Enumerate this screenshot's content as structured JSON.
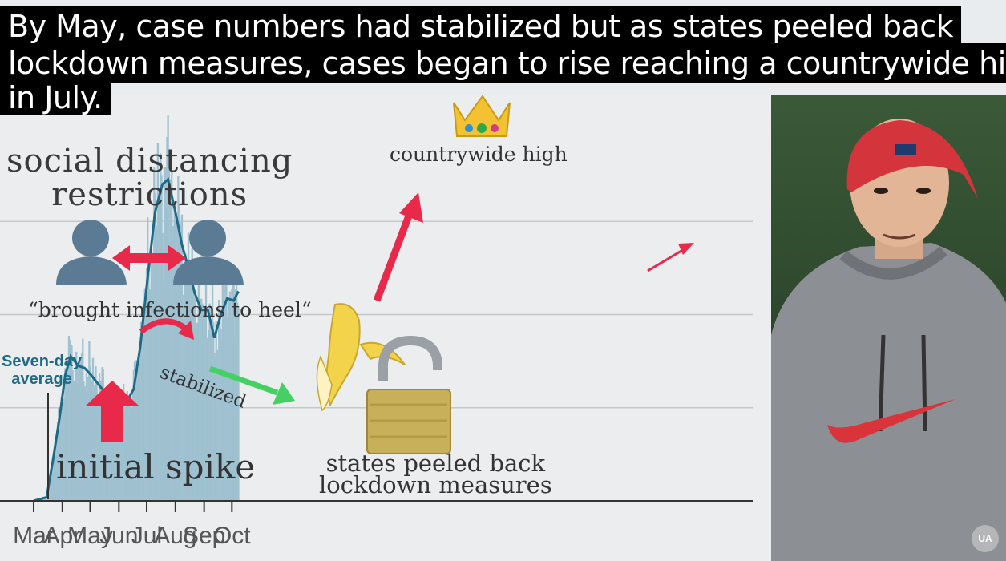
{
  "caption": {
    "lines": [
      "By May, case numbers had stabilized but as states peeled back",
      "lockdown measures, cases began to rise reaching a countrywide high",
      "in July."
    ]
  },
  "annotations": {
    "social_line1": "social distancing",
    "social_line2": "restrictions",
    "quote": "“brought infections to heel“",
    "avg_line1": "Seven-day",
    "avg_line2": "average",
    "spike": "initial spike",
    "stabilized": "stabilized",
    "peel_line1": "states peeled back",
    "peel_line2": "lockdown measures",
    "high": "countrywide high"
  },
  "icons": [
    "two-people-icon",
    "red-double-arrow-icon",
    "red-up-arrow-icon",
    "curved-red-arrow-icon",
    "green-arrow-icon",
    "banana-icon",
    "padlock-icon",
    "crown-icon",
    "red-diagonal-arrow-icon"
  ],
  "colors": {
    "bars": "#9fc1d0",
    "average_line": "#1e6a86",
    "arrow_red": "#e8294a",
    "arrow_green": "#45d063",
    "grid": "#c5c8ca"
  },
  "chart_data": {
    "type": "bar",
    "ylim": [
      0,
      80000
    ],
    "grid": true,
    "x_tick_labels": [
      "Mar",
      "Apr",
      "May",
      "Jun",
      "Jul",
      "Aug",
      "Sep",
      "Oct"
    ],
    "series": [
      {
        "name": "Seven-day average",
        "kind": "line",
        "points": [
          [
            "Mar 1",
            0
          ],
          [
            "Mar 15",
            800
          ],
          [
            "Mar 22",
            9000
          ],
          [
            "Mar 29",
            18000
          ],
          [
            "Apr 4",
            27000
          ],
          [
            "Apr 10",
            31000
          ],
          [
            "Apr 18",
            29000
          ],
          [
            "Apr 25",
            28500
          ],
          [
            "May 2",
            27000
          ],
          [
            "May 10",
            25000
          ],
          [
            "May 18",
            23000
          ],
          [
            "May 25",
            21500
          ],
          [
            "Jun 1",
            20500
          ],
          [
            "Jun 10",
            21500
          ],
          [
            "Jun 17",
            24000
          ],
          [
            "Jun 24",
            33000
          ],
          [
            "Jul 1",
            46000
          ],
          [
            "Jul 10",
            62000
          ],
          [
            "Jul 18",
            68000
          ],
          [
            "Jul 24",
            69000
          ],
          [
            "Aug 1",
            62000
          ],
          [
            "Aug 8",
            55000
          ],
          [
            "Aug 15",
            50000
          ],
          [
            "Aug 22",
            44500
          ],
          [
            "Aug 29",
            41000
          ],
          [
            "Sep 5",
            41000
          ],
          [
            "Sep 12",
            35000
          ],
          [
            "Sep 19",
            40000
          ],
          [
            "Sep 26",
            43500
          ],
          [
            "Oct 3",
            43000
          ],
          [
            "Oct 8",
            45000
          ]
        ]
      }
    ]
  }
}
